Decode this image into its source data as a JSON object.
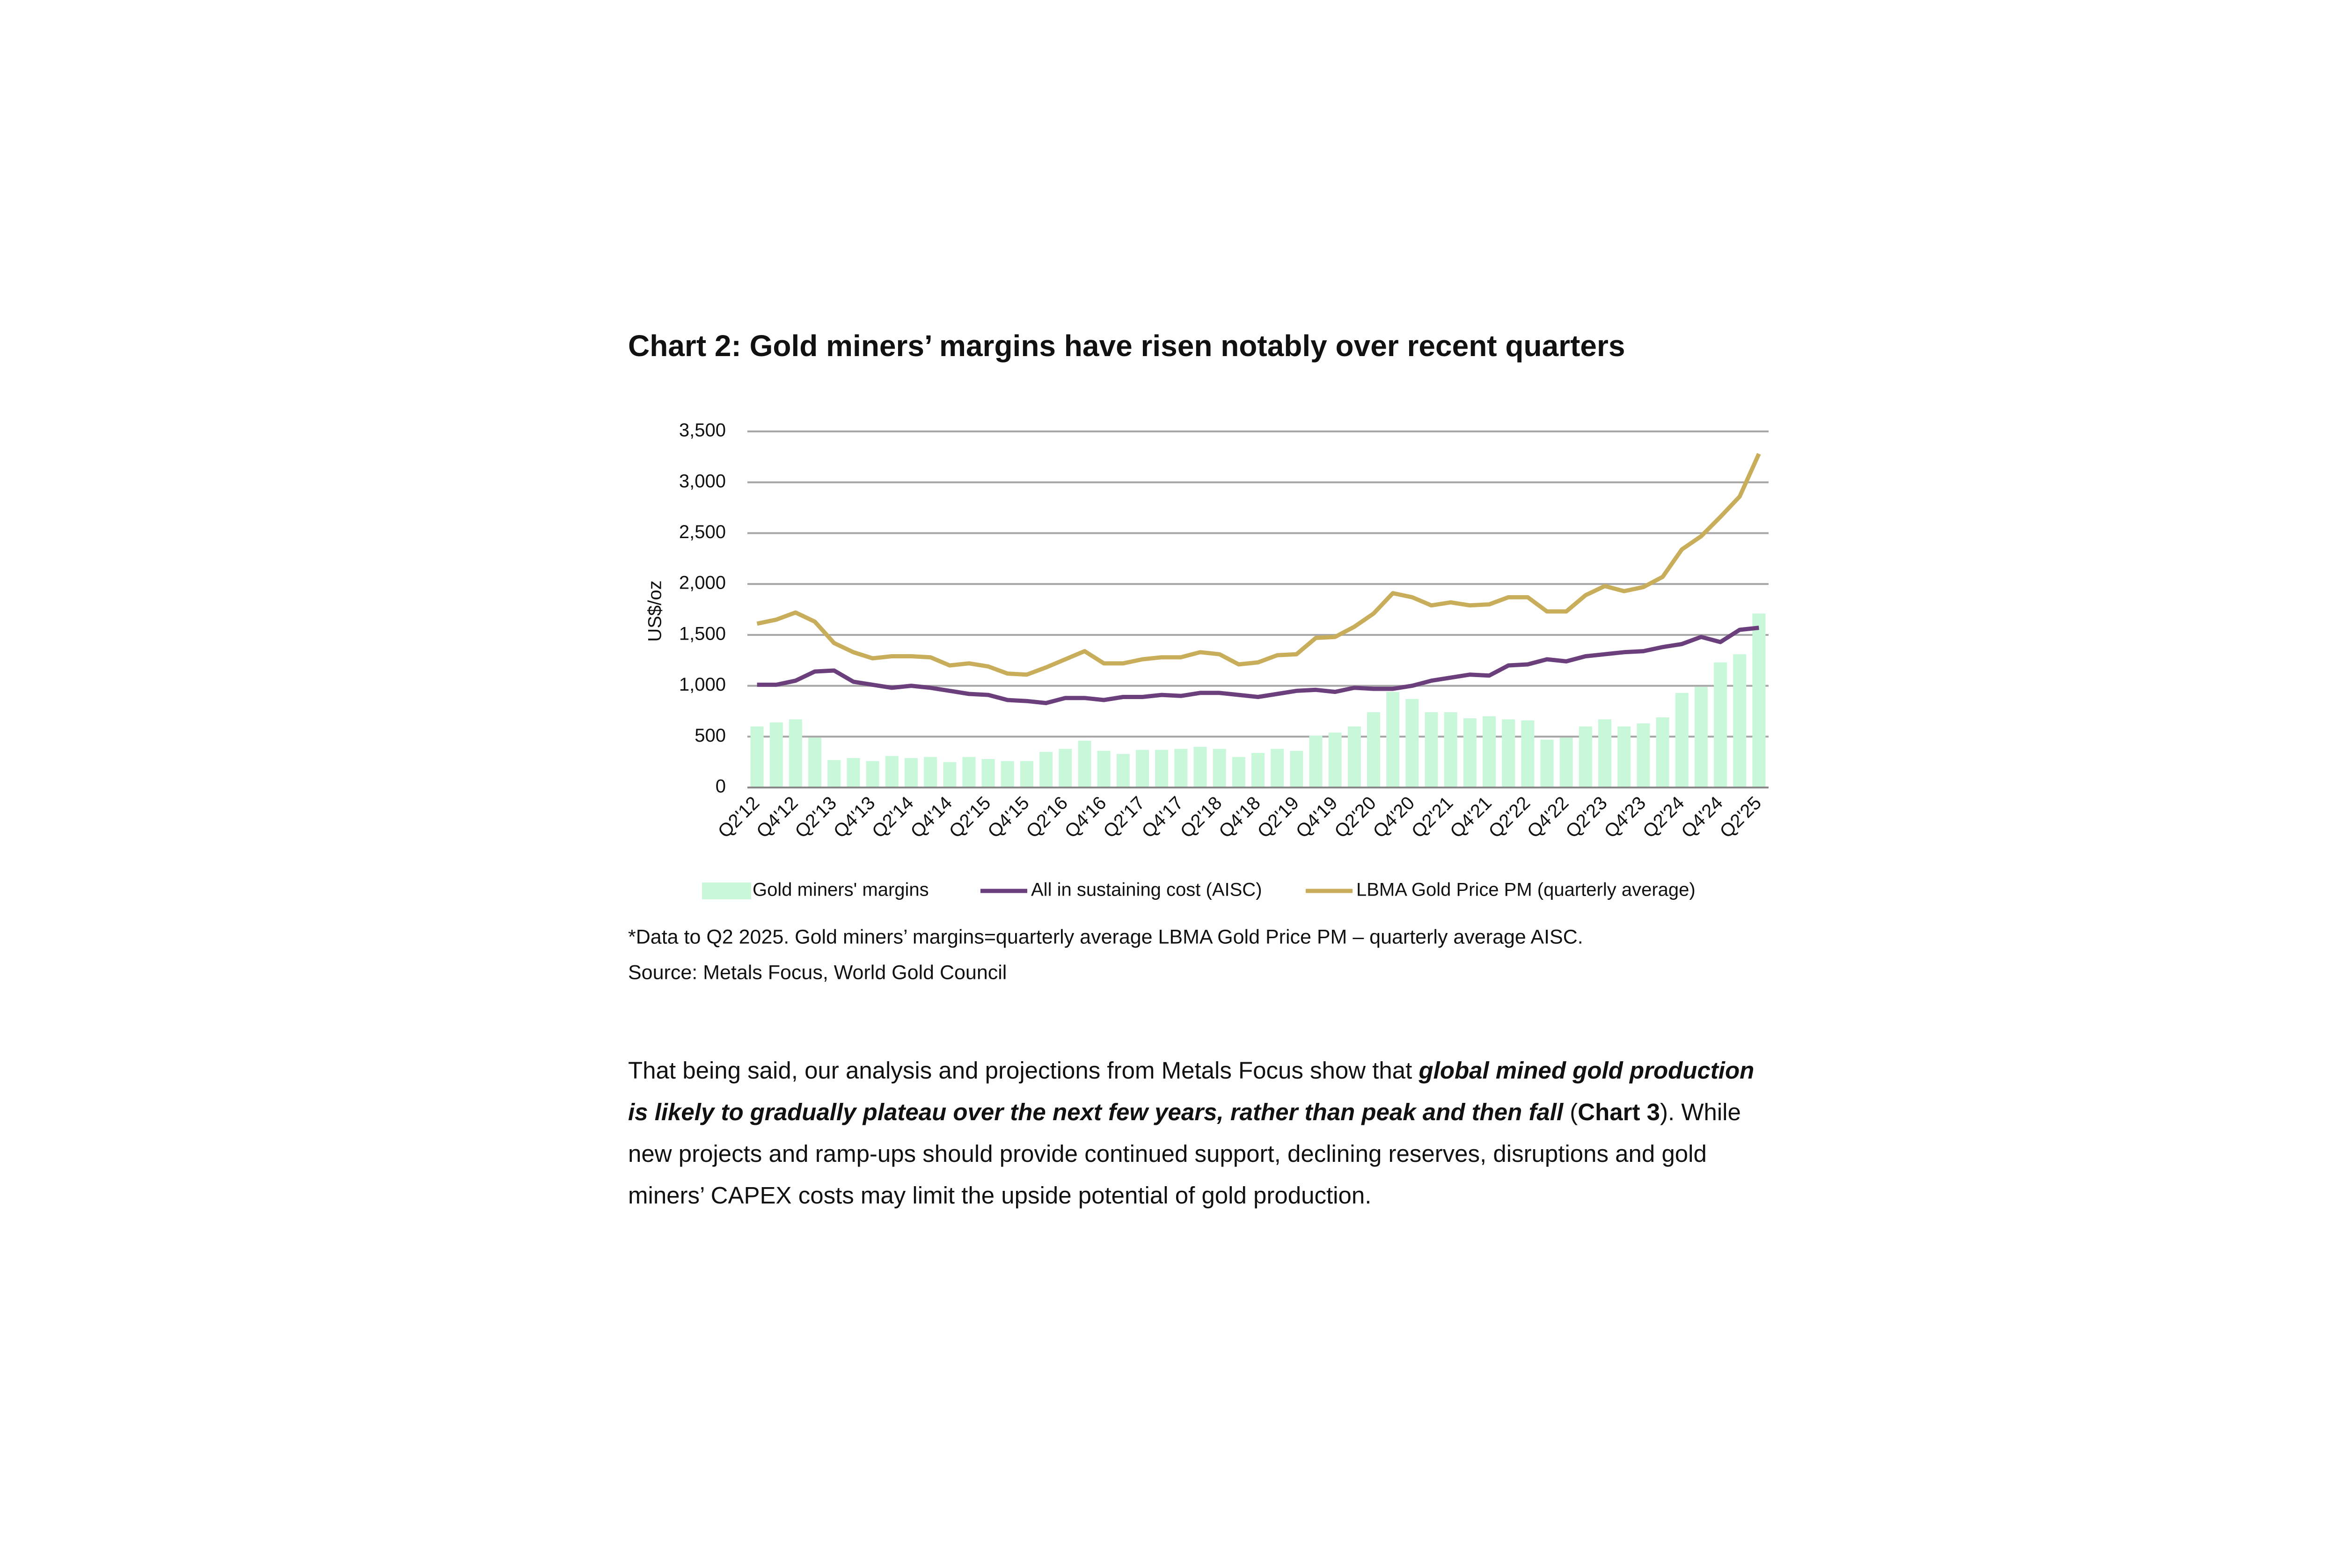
{
  "chart_data": {
    "type": "combo",
    "title": "Chart 2: Gold miners’ margins have risen notably over recent quarters",
    "ylabel": "US$/oz",
    "categories": [
      "Q2'12",
      null,
      "Q4'12",
      null,
      "Q2'13",
      null,
      "Q4'13",
      null,
      "Q2'14",
      null,
      "Q4'14",
      null,
      "Q2'15",
      null,
      "Q4'15",
      null,
      "Q2'16",
      null,
      "Q4'16",
      null,
      "Q2'17",
      null,
      "Q4'17",
      null,
      "Q2'18",
      null,
      "Q4'18",
      null,
      "Q2'19",
      null,
      "Q4'19",
      null,
      "Q2'20",
      null,
      "Q4'20",
      null,
      "Q2'21",
      null,
      "Q4'21",
      null,
      "Q2'22",
      null,
      "Q4'22",
      null,
      "Q2'23",
      null,
      "Q4'23",
      null,
      "Q2'24",
      null,
      "Q4'24",
      null,
      "Q2'25"
    ],
    "series": [
      {
        "name": "Gold miners' margins",
        "type": "bar",
        "color": "#c8f7da",
        "values": [
          600,
          640,
          670,
          490,
          270,
          290,
          260,
          310,
          290,
          300,
          250,
          300,
          280,
          260,
          260,
          350,
          380,
          460,
          360,
          330,
          370,
          370,
          380,
          400,
          380,
          300,
          340,
          380,
          360,
          510,
          540,
          600,
          740,
          940,
          870,
          740,
          740,
          680,
          700,
          670,
          660,
          470,
          490,
          600,
          670,
          600,
          630,
          690,
          930,
          990,
          1230,
          1310,
          1710
        ]
      },
      {
        "name": "All in sustaining cost (AISC)",
        "type": "line",
        "color": "#6b3f7c",
        "values": [
          1010,
          1010,
          1050,
          1140,
          1150,
          1040,
          1010,
          980,
          1000,
          980,
          950,
          920,
          910,
          860,
          850,
          830,
          880,
          880,
          860,
          890,
          890,
          910,
          900,
          930,
          930,
          910,
          890,
          920,
          950,
          960,
          940,
          980,
          970,
          970,
          1000,
          1050,
          1080,
          1110,
          1100,
          1200,
          1210,
          1260,
          1240,
          1290,
          1310,
          1330,
          1340,
          1380,
          1410,
          1480,
          1430,
          1550,
          1570
        ]
      },
      {
        "name": "LBMA Gold Price PM (quarterly average)",
        "type": "line",
        "color": "#c8ad5a",
        "values": [
          1610,
          1650,
          1720,
          1630,
          1420,
          1330,
          1270,
          1290,
          1290,
          1280,
          1200,
          1220,
          1190,
          1120,
          1110,
          1180,
          1260,
          1340,
          1220,
          1220,
          1260,
          1280,
          1280,
          1330,
          1310,
          1210,
          1230,
          1300,
          1310,
          1470,
          1480,
          1580,
          1710,
          1910,
          1870,
          1790,
          1820,
          1790,
          1800,
          1870,
          1870,
          1730,
          1730,
          1890,
          1980,
          1930,
          1970,
          2070,
          2340,
          2470,
          2660,
          2860,
          3280
        ]
      }
    ],
    "ylim": [
      0,
      3500
    ],
    "yticks": [
      0,
      500,
      {
        "value": 1000,
        "label": "1,000"
      },
      {
        "value": 1500,
        "label": "1,500"
      },
      {
        "value": 2000,
        "label": "2,000"
      },
      {
        "value": 2500,
        "label": "2,500"
      },
      {
        "value": 3000,
        "label": "3,000"
      },
      {
        "value": 3500,
        "label": "3,500"
      }
    ],
    "grid": true,
    "legend": "bottom"
  },
  "notes": [
    "*Data to Q2 2025. Gold miners’ margins=quarterly average LBMA Gold Price PM – quarterly average AISC.",
    "Source: Metals Focus, World Gold Council"
  ],
  "paragraph": [
    "That being said, our analysis and projections from Metals Focus show that ",
    "global mined gold production is likely to gradually plateau over the next few years, rather than peak and then fall",
    " (",
    "Chart 3",
    "). While new projects and ramp-ups should provide continued support, declining reserves, disruptions and gold miners’ CAPEX costs may limit the upside potential of gold production."
  ]
}
